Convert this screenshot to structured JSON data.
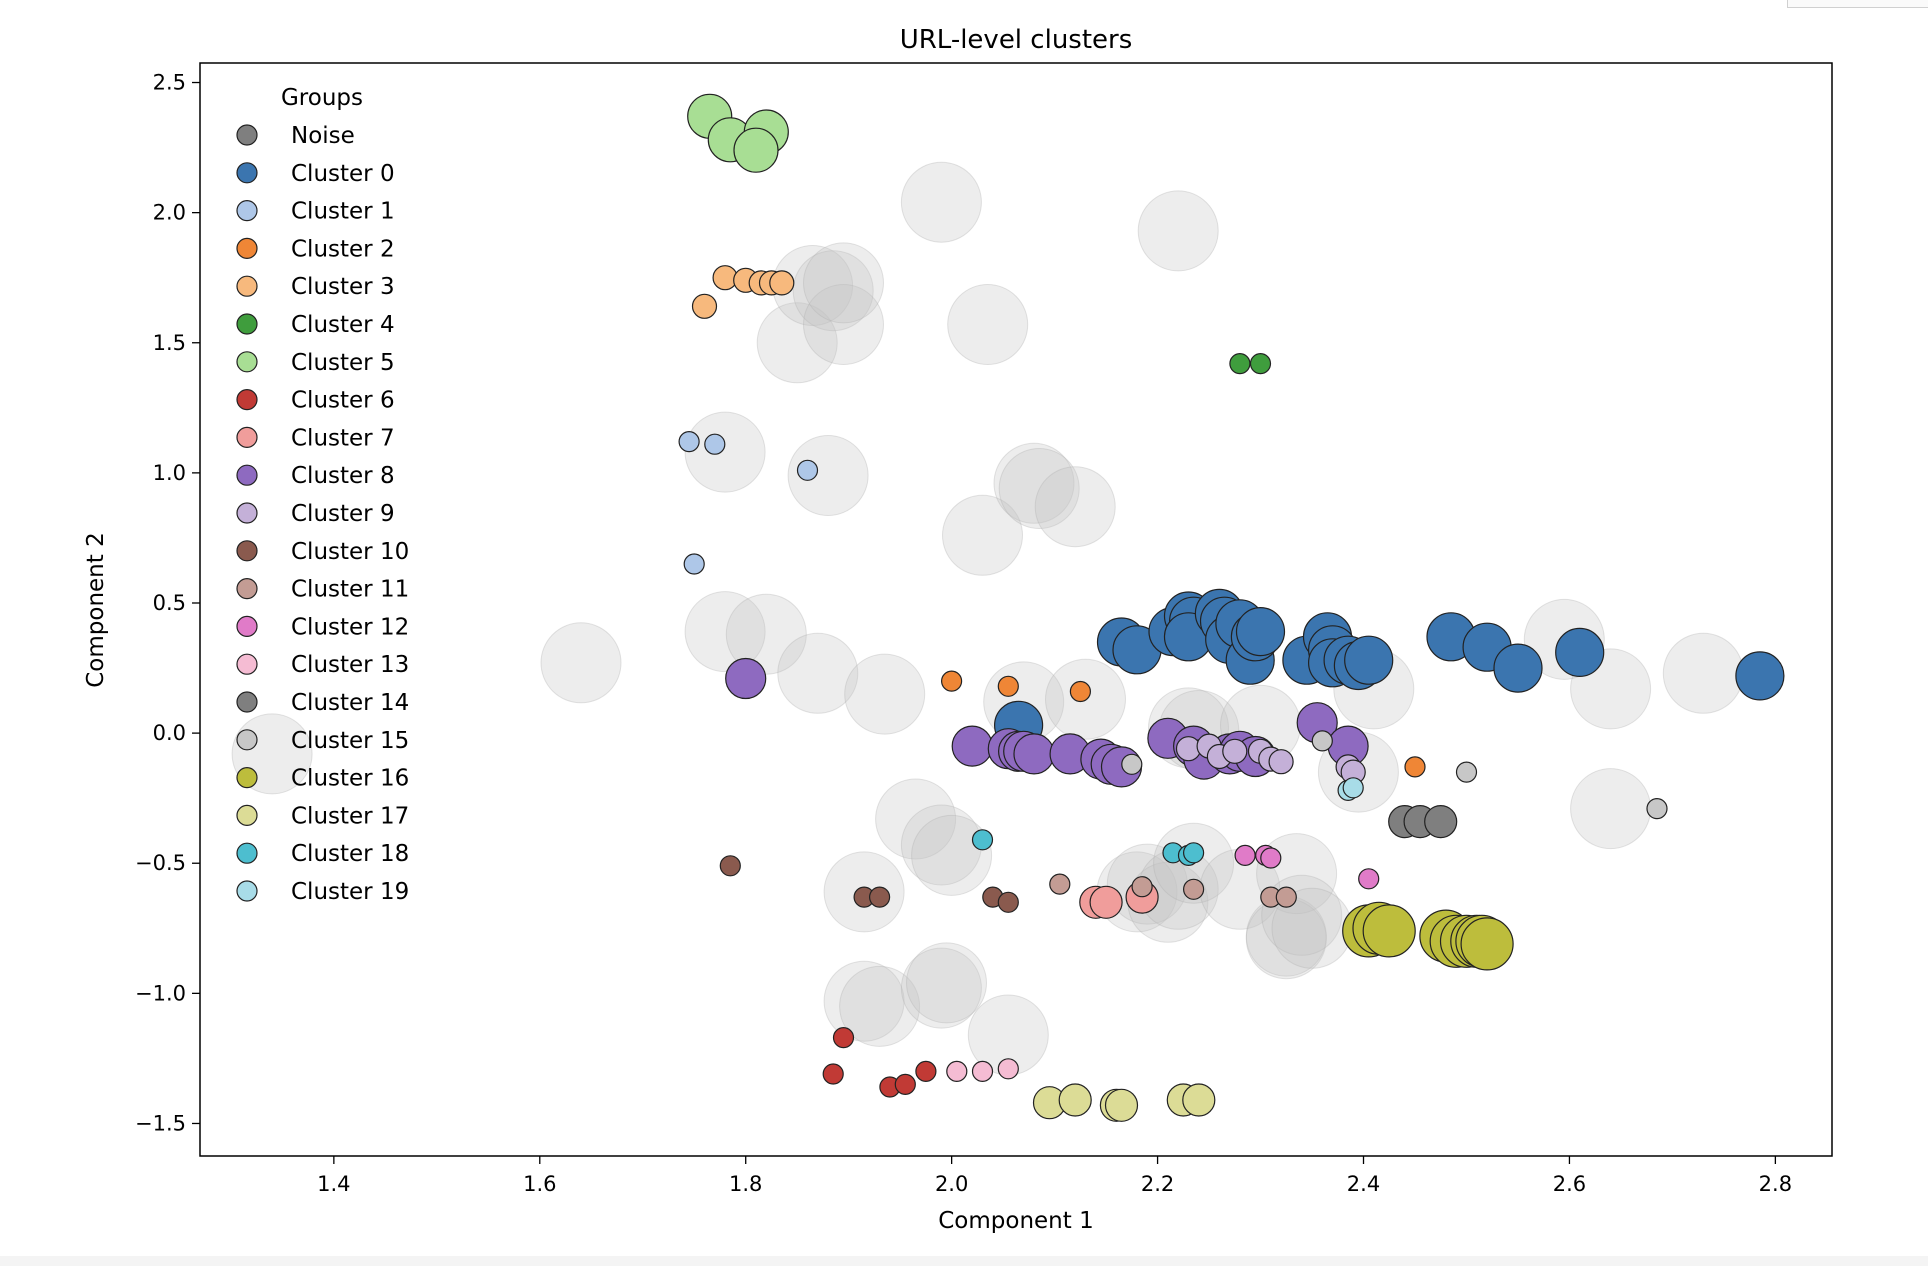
{
  "chart_data": {
    "type": "scatter",
    "title": "URL-level clusters",
    "xlabel": "Component 1",
    "ylabel": "Component 2",
    "xlim": [
      1.27,
      2.855
    ],
    "ylim": [
      -1.625,
      2.575
    ],
    "xticks": [
      1.4,
      1.6,
      1.8,
      2.0,
      2.2,
      2.4,
      2.6,
      2.8
    ],
    "yticks": [
      -1.5,
      -1.0,
      -0.5,
      0.0,
      0.5,
      1.0,
      1.5,
      2.0,
      2.5
    ],
    "xtick_labels": [
      "1.4",
      "1.6",
      "1.8",
      "2.0",
      "2.2",
      "2.4",
      "2.6",
      "2.8"
    ],
    "ytick_labels": [
      "−1.5",
      "−1.0",
      "−0.5",
      "0.0",
      "0.5",
      "1.0",
      "1.5",
      "2.0",
      "2.5"
    ],
    "grid": false,
    "legend": {
      "title": "Groups",
      "placement": "upper-left"
    },
    "series": [
      {
        "name": "Noise",
        "color": "#7f7f7f",
        "alpha": 0.15,
        "size": 40,
        "points": [
          [
            1.34,
            -0.08
          ],
          [
            1.64,
            0.27
          ],
          [
            1.78,
            1.08
          ],
          [
            1.78,
            0.39
          ],
          [
            1.82,
            0.38
          ],
          [
            1.85,
            1.5
          ],
          [
            1.865,
            1.72
          ],
          [
            1.87,
            0.23
          ],
          [
            1.88,
            0.99
          ],
          [
            1.885,
            1.7
          ],
          [
            1.895,
            1.57
          ],
          [
            1.895,
            1.73
          ],
          [
            1.915,
            -0.61
          ],
          [
            1.915,
            -1.03
          ],
          [
            1.93,
            -1.05
          ],
          [
            1.935,
            0.15
          ],
          [
            1.965,
            -0.33
          ],
          [
            1.99,
            2.04
          ],
          [
            1.99,
            -0.43
          ],
          [
            1.99,
            -0.98
          ],
          [
            1.995,
            -0.96
          ],
          [
            2.0,
            -0.47
          ],
          [
            2.03,
            0.76
          ],
          [
            2.035,
            1.57
          ],
          [
            2.055,
            -1.16
          ],
          [
            2.07,
            0.12
          ],
          [
            2.08,
            0.96
          ],
          [
            2.085,
            0.94
          ],
          [
            2.12,
            0.87
          ],
          [
            2.13,
            0.13
          ],
          [
            2.18,
            -0.61
          ],
          [
            2.19,
            -0.58
          ],
          [
            2.21,
            -0.65
          ],
          [
            2.22,
            -0.6
          ],
          [
            2.22,
            1.93
          ],
          [
            2.23,
            0.02
          ],
          [
            2.235,
            -0.5
          ],
          [
            2.24,
            0.01
          ],
          [
            2.28,
            -0.6
          ],
          [
            2.3,
            0.03
          ],
          [
            2.325,
            -0.78
          ],
          [
            2.325,
            -0.79
          ],
          [
            2.335,
            -0.54
          ],
          [
            2.34,
            -0.7
          ],
          [
            2.35,
            -0.75
          ],
          [
            2.395,
            -0.15
          ],
          [
            2.41,
            0.17
          ],
          [
            2.595,
            0.36
          ],
          [
            2.64,
            -0.29
          ],
          [
            2.64,
            0.17
          ],
          [
            2.73,
            0.23
          ]
        ]
      },
      {
        "name": "Cluster 0",
        "color": "#3b75af",
        "alpha": 1,
        "size": 24,
        "points": [
          [
            2.065,
            0.03
          ],
          [
            2.165,
            0.35
          ],
          [
            2.18,
            0.32
          ],
          [
            2.215,
            0.39
          ],
          [
            2.23,
            0.45
          ],
          [
            2.235,
            0.43
          ],
          [
            2.23,
            0.37
          ],
          [
            2.26,
            0.46
          ],
          [
            2.265,
            0.43
          ],
          [
            2.27,
            0.36
          ],
          [
            2.28,
            0.42
          ],
          [
            2.29,
            0.28
          ],
          [
            2.295,
            0.37
          ],
          [
            2.3,
            0.39
          ],
          [
            2.345,
            0.28
          ],
          [
            2.365,
            0.37
          ],
          [
            2.37,
            0.32
          ],
          [
            2.37,
            0.27
          ],
          [
            2.385,
            0.28
          ],
          [
            2.395,
            0.26
          ],
          [
            2.405,
            0.28
          ],
          [
            2.485,
            0.37
          ],
          [
            2.52,
            0.33
          ],
          [
            2.55,
            0.25
          ],
          [
            2.61,
            0.31
          ],
          [
            2.785,
            0.22
          ]
        ]
      },
      {
        "name": "Cluster 1",
        "color": "#aec7e8",
        "alpha": 1,
        "size": 10,
        "points": [
          [
            1.745,
            1.12
          ],
          [
            1.77,
            1.11
          ],
          [
            1.86,
            1.01
          ],
          [
            1.75,
            0.65
          ]
        ]
      },
      {
        "name": "Cluster 2",
        "color": "#ef8636",
        "alpha": 1,
        "size": 10,
        "points": [
          [
            2.0,
            0.2
          ],
          [
            2.055,
            0.18
          ],
          [
            2.125,
            0.16
          ],
          [
            2.45,
            -0.13
          ]
        ]
      },
      {
        "name": "Cluster 3",
        "color": "#f7b97d",
        "alpha": 1,
        "size": 12,
        "points": [
          [
            1.76,
            1.64
          ],
          [
            1.78,
            1.75
          ],
          [
            1.8,
            1.74
          ],
          [
            1.815,
            1.73
          ],
          [
            1.825,
            1.73
          ],
          [
            1.835,
            1.73
          ]
        ]
      },
      {
        "name": "Cluster 4",
        "color": "#3f9d3d",
        "alpha": 1,
        "size": 10,
        "points": [
          [
            2.28,
            1.42
          ],
          [
            2.3,
            1.42
          ]
        ]
      },
      {
        "name": "Cluster 5",
        "color": "#a8de94",
        "alpha": 1,
        "size": 22,
        "points": [
          [
            1.765,
            2.37
          ],
          [
            1.785,
            2.28
          ],
          [
            1.82,
            2.31
          ],
          [
            1.81,
            2.24
          ]
        ]
      },
      {
        "name": "Cluster 6",
        "color": "#c13a35",
        "alpha": 1,
        "size": 10,
        "points": [
          [
            1.885,
            -1.31
          ],
          [
            1.895,
            -1.17
          ],
          [
            1.94,
            -1.36
          ],
          [
            1.955,
            -1.35
          ],
          [
            1.975,
            -1.3
          ]
        ]
      },
      {
        "name": "Cluster 7",
        "color": "#f09d9b",
        "alpha": 1,
        "size": 16,
        "points": [
          [
            2.14,
            -0.65
          ],
          [
            2.15,
            -0.65
          ],
          [
            2.185,
            -0.63
          ]
        ]
      },
      {
        "name": "Cluster 8",
        "color": "#8e6ac0",
        "alpha": 1,
        "size": 20,
        "points": [
          [
            1.8,
            0.21
          ],
          [
            2.02,
            -0.05
          ],
          [
            2.055,
            -0.06
          ],
          [
            2.065,
            -0.07
          ],
          [
            2.07,
            -0.07
          ],
          [
            2.08,
            -0.08
          ],
          [
            2.115,
            -0.08
          ],
          [
            2.145,
            -0.1
          ],
          [
            2.155,
            -0.12
          ],
          [
            2.165,
            -0.13
          ],
          [
            2.21,
            -0.02
          ],
          [
            2.235,
            -0.05
          ],
          [
            2.245,
            -0.1
          ],
          [
            2.27,
            -0.08
          ],
          [
            2.28,
            -0.07
          ],
          [
            2.295,
            -0.09
          ],
          [
            2.355,
            0.04
          ],
          [
            2.385,
            -0.05
          ]
        ]
      },
      {
        "name": "Cluster 9",
        "color": "#c4b0d8",
        "alpha": 1,
        "size": 12,
        "points": [
          [
            2.23,
            -0.06
          ],
          [
            2.25,
            -0.05
          ],
          [
            2.26,
            -0.09
          ],
          [
            2.275,
            -0.07
          ],
          [
            2.3,
            -0.07
          ],
          [
            2.31,
            -0.1
          ],
          [
            2.32,
            -0.11
          ],
          [
            2.385,
            -0.13
          ],
          [
            2.39,
            -0.15
          ]
        ]
      },
      {
        "name": "Cluster 10",
        "color": "#8a5a4e",
        "alpha": 1,
        "size": 10,
        "points": [
          [
            1.785,
            -0.51
          ],
          [
            1.915,
            -0.63
          ],
          [
            1.93,
            -0.63
          ],
          [
            2.04,
            -0.63
          ],
          [
            2.055,
            -0.65
          ]
        ]
      },
      {
        "name": "Cluster 11",
        "color": "#c39c94",
        "alpha": 1,
        "size": 10,
        "points": [
          [
            2.105,
            -0.58
          ],
          [
            2.185,
            -0.59
          ],
          [
            2.235,
            -0.6
          ],
          [
            2.31,
            -0.63
          ],
          [
            2.325,
            -0.63
          ]
        ]
      },
      {
        "name": "Cluster 12",
        "color": "#e07bc8",
        "alpha": 1,
        "size": 10,
        "points": [
          [
            2.285,
            -0.47
          ],
          [
            2.305,
            -0.47
          ],
          [
            2.31,
            -0.48
          ],
          [
            2.405,
            -0.56
          ]
        ]
      },
      {
        "name": "Cluster 13",
        "color": "#f5bcd3",
        "alpha": 1,
        "size": 10,
        "points": [
          [
            2.005,
            -1.3
          ],
          [
            2.03,
            -1.3
          ],
          [
            2.055,
            -1.29
          ]
        ]
      },
      {
        "name": "Cluster 14",
        "color": "#7f7f7f",
        "alpha": 1,
        "size": 16,
        "points": [
          [
            2.44,
            -0.34
          ],
          [
            2.455,
            -0.34
          ],
          [
            2.475,
            -0.34
          ]
        ]
      },
      {
        "name": "Cluster 15",
        "color": "#c7c7c7",
        "alpha": 1,
        "size": 10,
        "points": [
          [
            2.175,
            -0.12
          ],
          [
            2.36,
            -0.03
          ],
          [
            2.5,
            -0.15
          ],
          [
            2.685,
            -0.29
          ]
        ]
      },
      {
        "name": "Cluster 16",
        "color": "#bdbd3c",
        "alpha": 1,
        "size": 26,
        "points": [
          [
            2.405,
            -0.76
          ],
          [
            2.415,
            -0.75
          ],
          [
            2.425,
            -0.76
          ],
          [
            2.48,
            -0.78
          ],
          [
            2.49,
            -0.8
          ],
          [
            2.5,
            -0.8
          ],
          [
            2.51,
            -0.8
          ],
          [
            2.515,
            -0.8
          ],
          [
            2.52,
            -0.81
          ]
        ]
      },
      {
        "name": "Cluster 17",
        "color": "#dcdc96",
        "alpha": 1,
        "size": 16,
        "points": [
          [
            2.095,
            -1.42
          ],
          [
            2.12,
            -1.41
          ],
          [
            2.16,
            -1.43
          ],
          [
            2.165,
            -1.43
          ],
          [
            2.225,
            -1.41
          ],
          [
            2.24,
            -1.41
          ]
        ]
      },
      {
        "name": "Cluster 18",
        "color": "#4dbecf",
        "alpha": 1,
        "size": 10,
        "points": [
          [
            2.03,
            -0.41
          ],
          [
            2.215,
            -0.46
          ],
          [
            2.23,
            -0.47
          ],
          [
            2.235,
            -0.46
          ]
        ]
      },
      {
        "name": "Cluster 19",
        "color": "#a8dce8",
        "alpha": 1,
        "size": 10,
        "points": [
          [
            2.385,
            -0.22
          ],
          [
            2.39,
            -0.21
          ]
        ]
      }
    ]
  }
}
